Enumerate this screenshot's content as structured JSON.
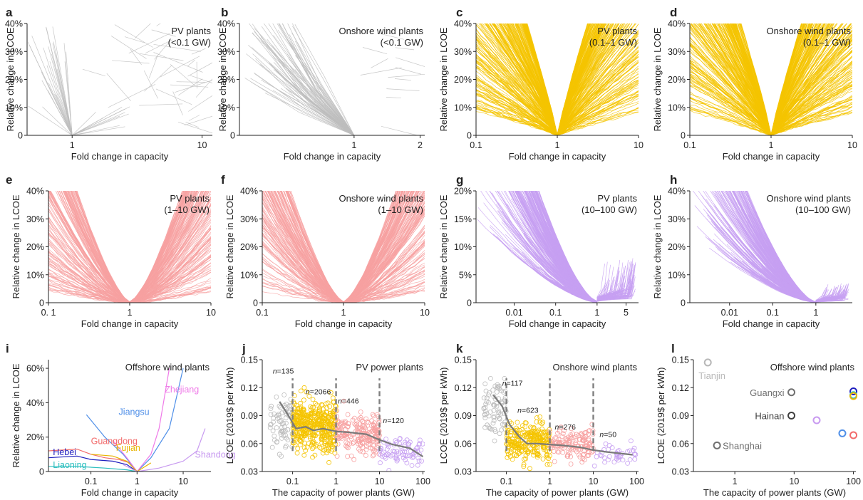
{
  "colors": {
    "gray": "#bdbdbd",
    "gold": "#f5c400",
    "salmon": "#f7a1a1",
    "purple": "#c7a0f2",
    "trend": "#7a7a7a",
    "dash": "#808080",
    "guangdong": "#f26b6b",
    "hebei": "#1f1fbf",
    "liaoning": "#2dbfbf",
    "jiangsu": "#4f8fe8",
    "zhejiang": "#ef7ae8",
    "fujian": "#e8b400",
    "shandong": "#c89af0"
  },
  "chart_data": [
    {
      "id": "a",
      "letter": "a",
      "type": "line",
      "title": "PV plants",
      "subtitle": "(<0.1 GW)",
      "xlabel": "Fold change in capacity",
      "ylabel": "Relative change in LCOE",
      "xscale": "log",
      "xlim": [
        0.45,
        12
      ],
      "ylim": [
        0,
        40
      ],
      "xticks": [
        {
          "v": 1,
          "label": "1"
        },
        {
          "v": 10,
          "label": "10"
        }
      ],
      "yticks": [
        {
          "v": 0,
          "label": "0"
        },
        {
          "v": 10,
          "label": "10%"
        },
        {
          "v": 20,
          "label": "20%"
        },
        {
          "v": 30,
          "label": "30%"
        },
        {
          "v": 40,
          "label": "40%"
        }
      ],
      "color": "gray",
      "style": "sparse_a"
    },
    {
      "id": "b",
      "letter": "b",
      "type": "line",
      "title": "Onshore wind plants",
      "subtitle": "(<0.1 GW)",
      "xlabel": "Fold change in capacity",
      "ylabel": "Relative change in LCOE",
      "xscale": "log",
      "xlim": [
        0.3,
        2.1
      ],
      "ylim": [
        0,
        40
      ],
      "xticks": [
        {
          "v": 1,
          "label": "1"
        },
        {
          "v": 2,
          "label": "2"
        }
      ],
      "yticks": [
        {
          "v": 0,
          "label": "0"
        },
        {
          "v": 10,
          "label": "10%"
        },
        {
          "v": 20,
          "label": "20%"
        },
        {
          "v": 30,
          "label": "30%"
        },
        {
          "v": 40,
          "label": "40%"
        }
      ],
      "color": "gray",
      "style": "sparse_b"
    },
    {
      "id": "c",
      "letter": "c",
      "type": "line",
      "title": "PV plants",
      "subtitle": "(0.1–1 GW)",
      "xlabel": "Fold change in capacity",
      "ylabel": "Relative change in LCOE",
      "xscale": "log",
      "xlim": [
        0.1,
        10
      ],
      "ylim": [
        0,
        40
      ],
      "xticks": [
        {
          "v": 0.1,
          "label": "0.1"
        },
        {
          "v": 1,
          "label": "1"
        },
        {
          "v": 10,
          "label": "10"
        }
      ],
      "yticks": [
        {
          "v": 0,
          "label": "0"
        },
        {
          "v": 10,
          "label": "10%"
        },
        {
          "v": 20,
          "label": "20%"
        },
        {
          "v": 30,
          "label": "30%"
        },
        {
          "v": 40,
          "label": "40%"
        }
      ],
      "color": "gold",
      "style": "dense_fan_both"
    },
    {
      "id": "d",
      "letter": "d",
      "type": "line",
      "title": "Onshore wind plants",
      "subtitle": "(0.1–1 GW)",
      "xlabel": "Fold change in capacity",
      "ylabel": "Relative change in LCOE",
      "xscale": "log",
      "xlim": [
        0.1,
        10
      ],
      "ylim": [
        0,
        40
      ],
      "xticks": [
        {
          "v": 0.1,
          "label": "0.1"
        },
        {
          "v": 1,
          "label": "1"
        },
        {
          "v": 10,
          "label": "10"
        }
      ],
      "yticks": [
        {
          "v": 0,
          "label": "0"
        },
        {
          "v": 10,
          "label": "10%"
        },
        {
          "v": 20,
          "label": "20%"
        },
        {
          "v": 30,
          "label": "30%"
        },
        {
          "v": 40,
          "label": "40%"
        }
      ],
      "color": "gold",
      "style": "dense_fan_both"
    },
    {
      "id": "e",
      "letter": "e",
      "type": "line",
      "title": "PV plants",
      "subtitle": "(1–10 GW)",
      "xlabel": "Fold change in capacity",
      "ylabel": "Relative change in LCOE",
      "xscale": "log",
      "xlim": [
        0.1,
        10
      ],
      "ylim": [
        0,
        40
      ],
      "xticks": [
        {
          "v": 0.1,
          "label": "0. 1"
        },
        {
          "v": 1,
          "label": "1"
        },
        {
          "v": 10,
          "label": "10"
        }
      ],
      "yticks": [
        {
          "v": 0,
          "label": "0"
        },
        {
          "v": 10,
          "label": "10%"
        },
        {
          "v": 20,
          "label": "20%"
        },
        {
          "v": 30,
          "label": "30%"
        },
        {
          "v": 40,
          "label": "40%"
        }
      ],
      "color": "salmon",
      "style": "dense_u"
    },
    {
      "id": "f",
      "letter": "f",
      "type": "line",
      "title": "Onshore wind plants",
      "subtitle": "(1–10 GW)",
      "xlabel": "Fold change in capacity",
      "ylabel": "Relative change in LCOE",
      "xscale": "log",
      "xlim": [
        0.1,
        10
      ],
      "ylim": [
        0,
        40
      ],
      "xticks": [
        {
          "v": 0.1,
          "label": "0.1"
        },
        {
          "v": 1,
          "label": "1"
        },
        {
          "v": 10,
          "label": "10"
        }
      ],
      "yticks": [
        {
          "v": 0,
          "label": "0"
        },
        {
          "v": 10,
          "label": "10%"
        },
        {
          "v": 20,
          "label": "20%"
        },
        {
          "v": 30,
          "label": "30%"
        },
        {
          "v": 40,
          "label": "40%"
        }
      ],
      "color": "salmon",
      "style": "dense_u"
    },
    {
      "id": "g",
      "letter": "g",
      "type": "line",
      "title": "PV plants",
      "subtitle": "(10–100 GW)",
      "xlabel": "Fold change in capacity",
      "ylabel": "Relative change in LCOE",
      "xscale": "log",
      "xlim": [
        0.0012,
        10
      ],
      "ylim": [
        0,
        20
      ],
      "xticks": [
        {
          "v": 0.01,
          "label": "0.01"
        },
        {
          "v": 0.1,
          "label": "0.1"
        },
        {
          "v": 1,
          "label": "1"
        },
        {
          "v": 5,
          "label": "5"
        }
      ],
      "yticks": [
        {
          "v": 0,
          "label": "0"
        },
        {
          "v": 5,
          "label": "5%"
        },
        {
          "v": 10,
          "label": "10%"
        },
        {
          "v": 15,
          "label": "15%"
        },
        {
          "v": 20,
          "label": "20%"
        }
      ],
      "color": "purple",
      "style": "dense_left"
    },
    {
      "id": "h",
      "letter": "h",
      "type": "line",
      "title": "Onshore wind plants",
      "subtitle": "(10–100 GW)",
      "xlabel": "Fold change in capacity",
      "ylabel": "Relative change in LCOE",
      "xscale": "log",
      "xlim": [
        0.0012,
        7
      ],
      "ylim": [
        0,
        40
      ],
      "xticks": [
        {
          "v": 0.01,
          "label": "0.01"
        },
        {
          "v": 0.1,
          "label": "0.1"
        },
        {
          "v": 1,
          "label": "1"
        }
      ],
      "yticks": [
        {
          "v": 0,
          "label": "0"
        },
        {
          "v": 10,
          "label": "10%"
        },
        {
          "v": 20,
          "label": "20%"
        },
        {
          "v": 30,
          "label": "30%"
        },
        {
          "v": 40,
          "label": "40%"
        }
      ],
      "color": "purple",
      "style": "dense_left"
    },
    {
      "id": "i",
      "letter": "i",
      "type": "line",
      "title": "Offshore wind plants",
      "subtitle": "",
      "xlabel": "Fold change in capacity",
      "ylabel": "Relative change in LCOE",
      "xscale": "log",
      "xlim": [
        0.012,
        40
      ],
      "ylim": [
        0,
        65
      ],
      "xticks": [
        {
          "v": 0.1,
          "label": "0.1"
        },
        {
          "v": 1,
          "label": "1"
        },
        {
          "v": 10,
          "label": "10"
        }
      ],
      "yticks": [
        {
          "v": 0,
          "label": "0"
        },
        {
          "v": 20,
          "label": "20%"
        },
        {
          "v": 40,
          "label": "40%"
        },
        {
          "v": 60,
          "label": "60%"
        }
      ],
      "series": [
        {
          "name": "Guangdong",
          "color": "guangdong",
          "x": [
            0.012,
            0.05,
            0.1,
            0.2,
            0.4,
            0.7,
            1
          ],
          "y": [
            12,
            13,
            10,
            8,
            7,
            5,
            0
          ],
          "label_at": [
            0.1,
            16
          ]
        },
        {
          "name": "Hebei",
          "color": "hebei",
          "x": [
            0.012,
            0.05,
            0.1,
            0.3,
            0.6,
            1
          ],
          "y": [
            8,
            9,
            7,
            6,
            4,
            0
          ],
          "label_at": [
            0.015,
            9.5
          ]
        },
        {
          "name": "Liaoning",
          "color": "liaoning",
          "x": [
            0.012,
            0.05,
            0.2,
            0.6,
            1
          ],
          "y": [
            3,
            3,
            2,
            1,
            0
          ],
          "label_at": [
            0.015,
            2
          ]
        },
        {
          "name": "Jiangsu",
          "color": "jiangsu",
          "x": [
            0.08,
            0.2,
            0.5,
            1,
            2,
            5,
            10
          ],
          "y": [
            33,
            20,
            10,
            0,
            8,
            25,
            60
          ],
          "label_at": [
            0.4,
            33
          ]
        },
        {
          "name": "Zhejiang",
          "color": "zhejiang",
          "x": [
            0.3,
            0.6,
            1,
            2,
            3,
            5
          ],
          "y": [
            18,
            8,
            0,
            10,
            25,
            60
          ],
          "label_at": [
            4,
            46
          ]
        },
        {
          "name": "Fujian",
          "color": "fujian",
          "x": [
            0.1,
            0.3,
            0.6,
            1,
            2
          ],
          "y": [
            10,
            9,
            6,
            0,
            5
          ],
          "label_at": [
            0.35,
            12
          ]
        },
        {
          "name": "Shandong",
          "color": "shandong",
          "x": [
            0.5,
            1,
            3,
            10,
            20,
            30
          ],
          "y": [
            4,
            0,
            2,
            6,
            12,
            25
          ],
          "label_at": [
            18,
            8
          ]
        }
      ]
    },
    {
      "id": "j",
      "letter": "j",
      "type": "scatter",
      "title": "PV power plants",
      "subtitle": "",
      "xlabel": "The capacity of power plants (GW)",
      "ylabel": "LCOE (2019$ per kWh)",
      "xscale": "log",
      "xlim": [
        0.02,
        110
      ],
      "ylim": [
        0.03,
        0.15
      ],
      "xticks": [
        {
          "v": 0.1,
          "label": "0.1"
        },
        {
          "v": 1,
          "label": "1"
        },
        {
          "v": 10,
          "label": "10"
        },
        {
          "v": 100,
          "label": "100"
        }
      ],
      "yticks": [
        {
          "v": 0.03,
          "label": "0.03"
        },
        {
          "v": 0.06,
          "label": "0.06"
        },
        {
          "v": 0.09,
          "label": "0.09"
        },
        {
          "v": 0.12,
          "label": "0.12"
        },
        {
          "v": 0.15,
          "label": "0.15"
        }
      ],
      "groups": [
        {
          "color": "gray",
          "n_label": "135",
          "xr": [
            0.03,
            0.1
          ],
          "yc": 0.085,
          "ys": 0.015,
          "n": 70,
          "label_at": [
            0.035,
            0.135
          ]
        },
        {
          "color": "gold",
          "n_label": "2066",
          "xr": [
            0.1,
            1
          ],
          "yc": 0.078,
          "ys": 0.014,
          "n": 420,
          "label_at": [
            0.2,
            0.113
          ]
        },
        {
          "color": "salmon",
          "n_label": "446",
          "xr": [
            1,
            10
          ],
          "yc": 0.072,
          "ys": 0.011,
          "n": 200,
          "label_at": [
            1.1,
            0.103
          ]
        },
        {
          "color": "purple",
          "n_label": "120",
          "xr": [
            10,
            100
          ],
          "yc": 0.05,
          "ys": 0.008,
          "n": 80,
          "label_at": [
            12,
            0.082
          ]
        }
      ],
      "dividers": [
        0.1,
        1,
        10
      ],
      "trend": {
        "x": [
          0.05,
          0.08,
          0.12,
          0.2,
          0.3,
          0.5,
          1,
          2,
          5,
          10,
          20,
          50,
          100
        ],
        "y": [
          0.105,
          0.09,
          0.076,
          0.078,
          0.074,
          0.076,
          0.073,
          0.072,
          0.07,
          0.064,
          0.059,
          0.055,
          0.046
        ]
      }
    },
    {
      "id": "k",
      "letter": "k",
      "type": "scatter",
      "title": "Onshore wind plants",
      "subtitle": "",
      "xlabel": "The capacity of power plants (GW)",
      "ylabel": "LCOE (2019$ per kWh)",
      "xscale": "log",
      "xlim": [
        0.02,
        110
      ],
      "ylim": [
        0.03,
        0.15
      ],
      "xticks": [
        {
          "v": 0.1,
          "label": "0.1"
        },
        {
          "v": 1,
          "label": "1"
        },
        {
          "v": 10,
          "label": "10"
        },
        {
          "v": 100,
          "label": "100"
        }
      ],
      "yticks": [
        {
          "v": 0.03,
          "label": "0.03"
        },
        {
          "v": 0.06,
          "label": "0.06"
        },
        {
          "v": 0.09,
          "label": "0.09"
        },
        {
          "v": 0.12,
          "label": "0.12"
        },
        {
          "v": 0.15,
          "label": "0.15"
        }
      ],
      "groups": [
        {
          "color": "gray",
          "n_label": "117",
          "xr": [
            0.03,
            0.1
          ],
          "yc": 0.1,
          "ys": 0.017,
          "n": 80,
          "label_at": [
            0.08,
            0.122
          ]
        },
        {
          "color": "gold",
          "n_label": "623",
          "xr": [
            0.1,
            1
          ],
          "yc": 0.061,
          "ys": 0.01,
          "n": 260,
          "label_at": [
            0.18,
            0.093
          ]
        },
        {
          "color": "salmon",
          "n_label": "276",
          "xr": [
            1,
            10
          ],
          "yc": 0.059,
          "ys": 0.008,
          "n": 140,
          "label_at": [
            1.3,
            0.075
          ]
        },
        {
          "color": "purple",
          "n_label": "50",
          "xr": [
            10,
            100
          ],
          "yc": 0.05,
          "ys": 0.006,
          "n": 40,
          "label_at": [
            14,
            0.067
          ]
        }
      ],
      "dividers": [
        0.1,
        1,
        10
      ],
      "trend": {
        "x": [
          0.05,
          0.08,
          0.12,
          0.2,
          0.3,
          0.5,
          1,
          2,
          5,
          10,
          20,
          50,
          80
        ],
        "y": [
          0.112,
          0.1,
          0.08,
          0.067,
          0.06,
          0.06,
          0.059,
          0.058,
          0.056,
          0.053,
          0.051,
          0.049,
          0.048
        ]
      }
    },
    {
      "id": "l",
      "letter": "l",
      "type": "scatter",
      "title": "Offshore wind plants",
      "subtitle": "",
      "xlabel": "The capacity of power plants (GW)",
      "ylabel": "LCOE (2019$ per kWh)",
      "xscale": "log",
      "xlim": [
        0.2,
        110
      ],
      "ylim": [
        0.03,
        0.15
      ],
      "xticks": [
        {
          "v": 1,
          "label": "1"
        },
        {
          "v": 10,
          "label": "10"
        },
        {
          "v": 100,
          "label": "100"
        }
      ],
      "yticks": [
        {
          "v": 0.03,
          "label": "0.03"
        },
        {
          "v": 0.06,
          "label": "0.06"
        },
        {
          "v": 0.09,
          "label": "0.09"
        },
        {
          "v": 0.12,
          "label": "0.12"
        },
        {
          "v": 0.15,
          "label": "0.15"
        }
      ],
      "points": [
        {
          "name": "Tianjin",
          "x": 0.35,
          "y": 0.147,
          "color": "#b8b8b8",
          "label_color": "#b8b8b8",
          "label_pos": "below"
        },
        {
          "name": "Guangxi",
          "x": 9,
          "y": 0.115,
          "color": "#707070",
          "label_color": "#707070",
          "label_pos": "left"
        },
        {
          "name": "Hainan",
          "x": 9,
          "y": 0.09,
          "color": "#404040",
          "label_color": "#404040",
          "label_pos": "left"
        },
        {
          "name": "Shanghai",
          "x": 0.5,
          "y": 0.058,
          "color": "#707070",
          "label_color": "#707070",
          "label_pos": "right"
        },
        {
          "name": "",
          "x": 24,
          "y": 0.085,
          "color": "#c89af0"
        },
        {
          "name": "",
          "x": 65,
          "y": 0.071,
          "color": "#4f8fe8"
        },
        {
          "name": "",
          "x": 100,
          "y": 0.116,
          "color": "#1f1fbf"
        },
        {
          "name": "",
          "x": 100,
          "y": 0.112,
          "color": "#2dbfbf"
        },
        {
          "name": "",
          "x": 100,
          "y": 0.111,
          "color": "#e8b400"
        },
        {
          "name": "",
          "x": 100,
          "y": 0.069,
          "color": "#f26b6b"
        }
      ]
    }
  ]
}
